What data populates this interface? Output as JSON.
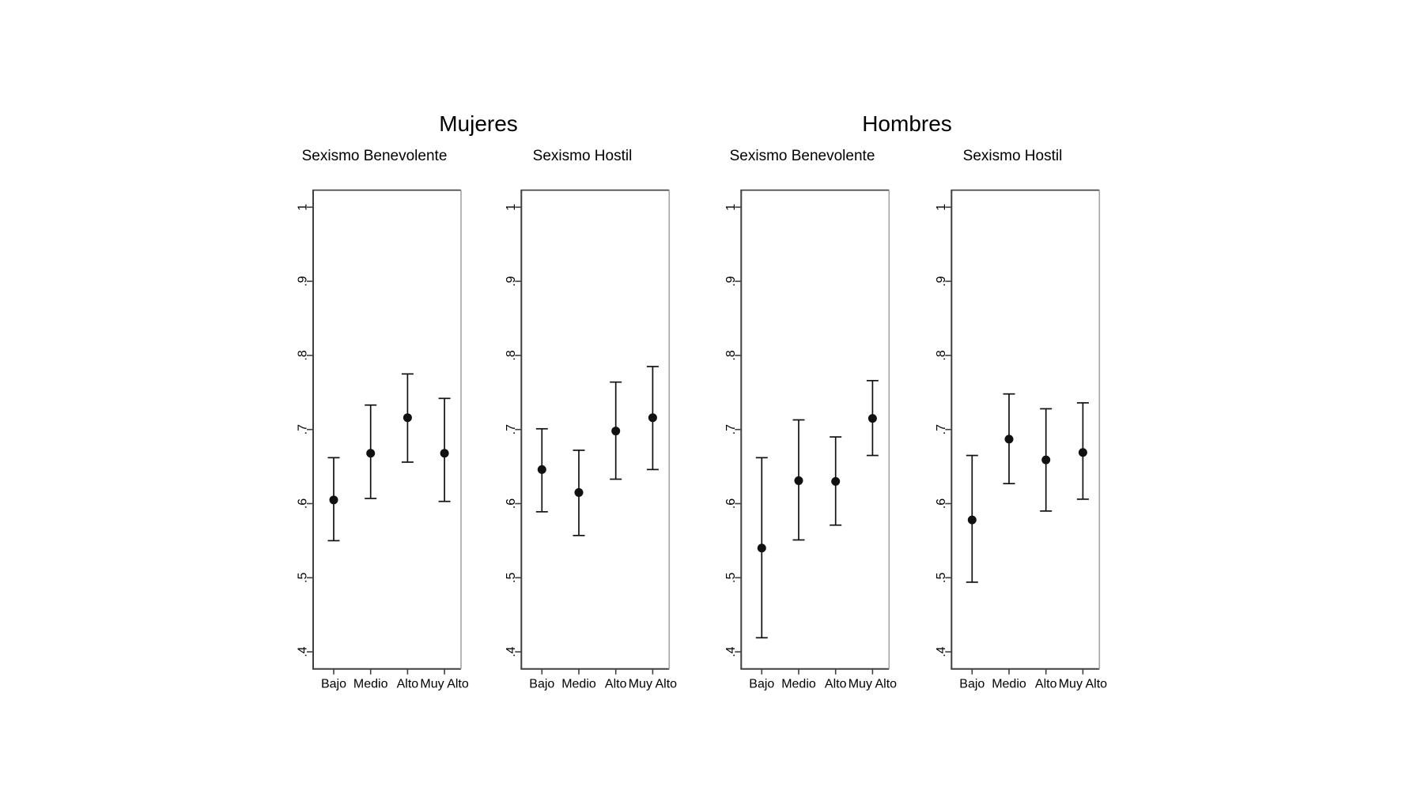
{
  "figure_title": "",
  "chart_meta": {
    "group_titles": [
      "Mujeres",
      "Hombres"
    ],
    "background": "#ffffff",
    "axis_color": "#3f3f3f",
    "right_border_color": "#a3a3a3",
    "marker_color": "#111111",
    "grid": false,
    "legend": false,
    "ytick_labels": [
      ".4",
      ".5",
      ".6",
      ".7",
      ".8",
      ".9",
      "1"
    ],
    "yticks": [
      0.4,
      0.5,
      0.6,
      0.7,
      0.8,
      0.9,
      1.0
    ]
  },
  "chart_data": [
    {
      "type": "scatter",
      "group": "Mujeres",
      "title": "Sexismo Benevolente",
      "categories": [
        "Bajo",
        "Medio",
        "Alto",
        "Muy Alto"
      ],
      "values": [
        0.605,
        0.668,
        0.716,
        0.668
      ],
      "ci_low": [
        0.55,
        0.607,
        0.656,
        0.603
      ],
      "ci_high": [
        0.662,
        0.733,
        0.775,
        0.742
      ],
      "xlabel": "",
      "ylabel": "",
      "ylim": [
        0.377,
        1.023
      ]
    },
    {
      "type": "scatter",
      "group": "Mujeres",
      "title": "Sexismo Hostil",
      "categories": [
        "Bajo",
        "Medio",
        "Alto",
        "Muy Alto"
      ],
      "values": [
        0.646,
        0.615,
        0.698,
        0.716
      ],
      "ci_low": [
        0.589,
        0.557,
        0.633,
        0.646
      ],
      "ci_high": [
        0.701,
        0.672,
        0.764,
        0.785
      ],
      "xlabel": "",
      "ylabel": "",
      "ylim": [
        0.377,
        1.023
      ]
    },
    {
      "type": "scatter",
      "group": "Hombres",
      "title": "Sexismo Benevolente",
      "categories": [
        "Bajo",
        "Medio",
        "Alto",
        "Muy Alto"
      ],
      "values": [
        0.54,
        0.631,
        0.63,
        0.715
      ],
      "ci_low": [
        0.419,
        0.551,
        0.571,
        0.665
      ],
      "ci_high": [
        0.662,
        0.713,
        0.69,
        0.766
      ],
      "xlabel": "",
      "ylabel": "",
      "ylim": [
        0.377,
        1.023
      ]
    },
    {
      "type": "scatter",
      "group": "Hombres",
      "title": "Sexismo Hostil",
      "categories": [
        "Bajo",
        "Medio",
        "Alto",
        "Muy Alto"
      ],
      "values": [
        0.578,
        0.687,
        0.659,
        0.669
      ],
      "ci_low": [
        0.494,
        0.627,
        0.59,
        0.606
      ],
      "ci_high": [
        0.665,
        0.748,
        0.728,
        0.736
      ],
      "xlabel": "",
      "ylabel": "",
      "ylim": [
        0.377,
        1.023
      ]
    }
  ]
}
